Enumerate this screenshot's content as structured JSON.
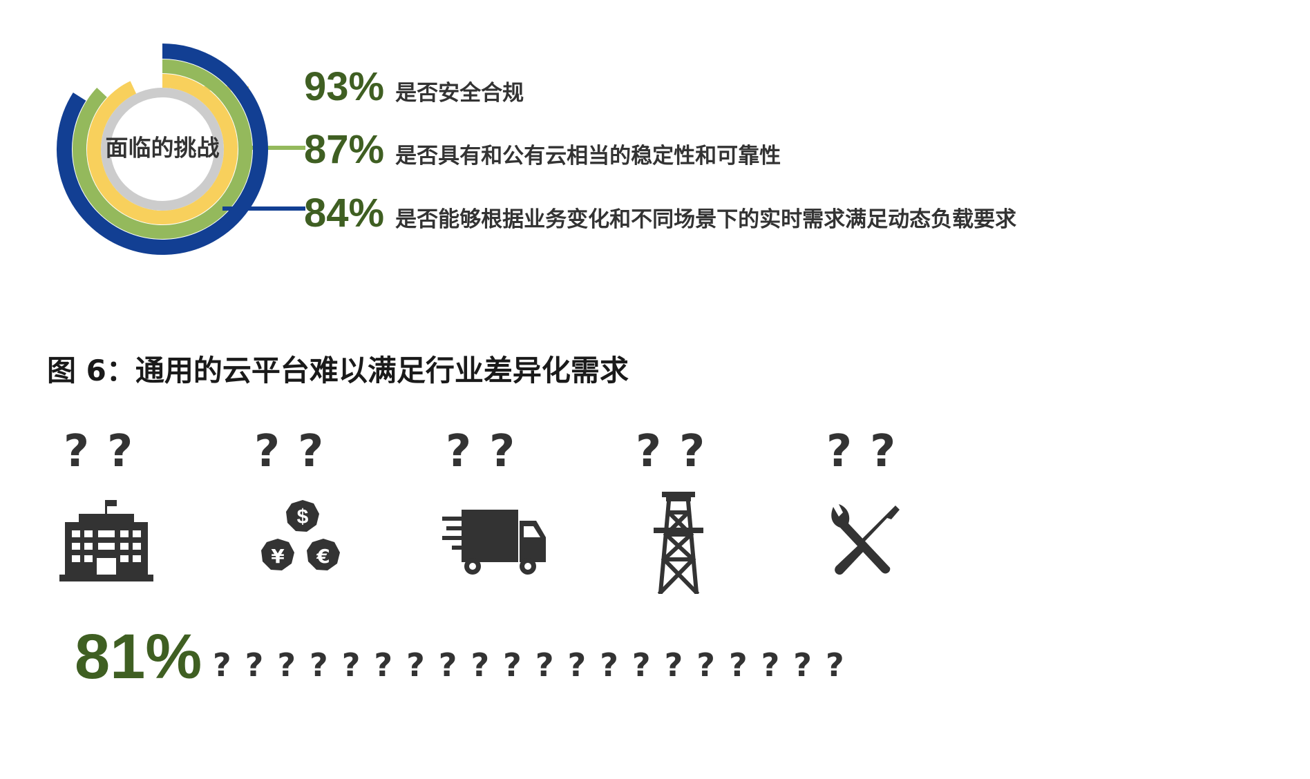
{
  "chart_data": {
    "type": "pie",
    "center_label": "面临的挑战",
    "series": [
      {
        "value": 93,
        "label_pct": "93%",
        "text": "是否安全合规",
        "color": "#f8d05c"
      },
      {
        "value": 87,
        "label_pct": "87%",
        "text": "是否具有和公有云相当的稳定性和可靠性",
        "color": "#94b95c"
      },
      {
        "value": 84,
        "label_pct": "84%",
        "text": "是否能够根据业务变化和不同场景下的实时需求满足动态负载要求",
        "color": "#123f93"
      }
    ],
    "inner_ring_color": "#cccccc"
  },
  "figure_title": "图 6：通用的云平台难以满足行业差异化需求",
  "question_pair": "??",
  "icons": [
    "building-icon",
    "currency-coins-icon",
    "delivery-truck-icon",
    "power-tower-icon",
    "tools-icon"
  ],
  "bottom": {
    "percent": "81%",
    "questions": "????????????????????"
  },
  "colors": {
    "accent_green": "#3f5f22",
    "icon_gray": "#333333"
  }
}
